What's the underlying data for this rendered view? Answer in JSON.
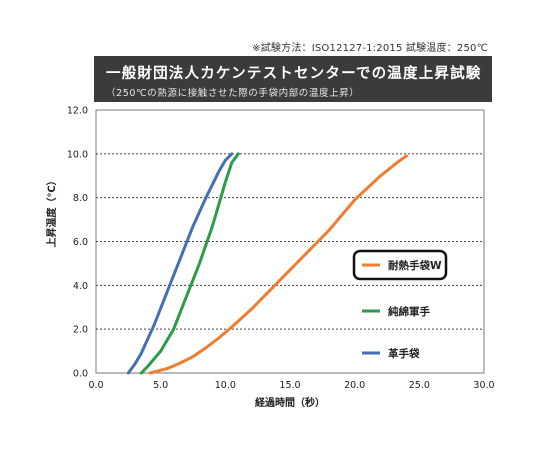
{
  "header": {
    "note": "※試験方法：ISO12127-1:2015 試験温度：250℃",
    "title": "一般財団法人カケンテストセンターでの温度上昇試験",
    "subtitle": "（250℃の熱源に接触させた際の手袋内部の温度上昇）"
  },
  "chart_data": {
    "type": "line",
    "xlabel": "経過時間（秒）",
    "ylabel": "上昇温度（℃）",
    "xlim": [
      0,
      30
    ],
    "ylim": [
      0,
      12
    ],
    "x_ticks": [
      "0.0",
      "5.0",
      "10.0",
      "15.0",
      "20.0",
      "25.0",
      "30.0"
    ],
    "y_ticks": [
      "0.0",
      "2.0",
      "4.0",
      "6.0",
      "8.0",
      "10.0",
      "12.0"
    ],
    "grid": "horizontal dotted",
    "legend_position": "right",
    "highlighted_series": "耐熱手袋W",
    "series": [
      {
        "name": "耐熱手袋W",
        "color": "#ee7d31",
        "x": [
          4.2,
          5.5,
          6.5,
          7.5,
          8.5,
          9.5,
          10.5,
          12.0,
          14.0,
          16.0,
          18.0,
          20.0,
          22.0,
          23.5,
          24.0
        ],
        "y": [
          0.0,
          0.2,
          0.45,
          0.75,
          1.15,
          1.6,
          2.1,
          2.9,
          4.1,
          5.3,
          6.5,
          7.9,
          9.0,
          9.7,
          9.9
        ]
      },
      {
        "name": "純綿軍手",
        "color": "#2f9a47",
        "x": [
          3.5,
          4.0,
          5.0,
          6.0,
          7.0,
          8.0,
          9.0,
          9.5,
          10.0,
          10.5,
          11.0
        ],
        "y": [
          0.0,
          0.3,
          1.0,
          2.0,
          3.5,
          5.0,
          6.7,
          7.7,
          8.7,
          9.6,
          10.0
        ]
      },
      {
        "name": "革手袋",
        "color": "#4470b0",
        "x": [
          2.5,
          3.0,
          3.5,
          4.5,
          5.5,
          6.5,
          7.5,
          8.5,
          9.5,
          10.0,
          10.5
        ],
        "y": [
          0.0,
          0.4,
          0.9,
          2.2,
          3.7,
          5.2,
          6.7,
          8.0,
          9.2,
          9.7,
          10.0
        ]
      }
    ]
  }
}
